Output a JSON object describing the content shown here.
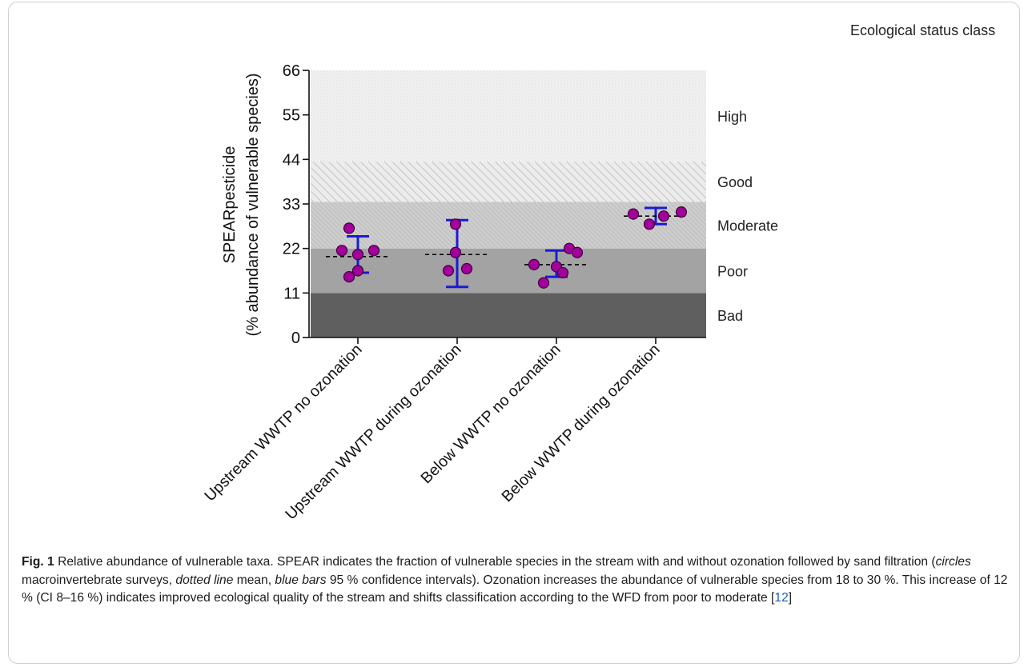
{
  "chart_data": {
    "type": "scatter",
    "title": "",
    "ylabel_line1": "SPEARpesticide",
    "ylabel_line2": "(% abundance of vulnerable species)",
    "ylim": [
      0,
      66
    ],
    "yticks": [
      0,
      11,
      22,
      33,
      44,
      55,
      66
    ],
    "categories": [
      "Upstream WWTP no ozonation",
      "Upstream WWTP during ozonation",
      "Below WWTP no ozonation",
      "Below WWTP during ozonation"
    ],
    "band_legend_title": "Ecological status class",
    "bands": [
      {
        "label": "Bad",
        "from": 0,
        "to": 11,
        "color": "#5f5f5f",
        "pattern": "solid"
      },
      {
        "label": "Poor",
        "from": 11,
        "to": 22,
        "color": "#a3a3a3",
        "pattern": "solid"
      },
      {
        "label": "Moderate",
        "from": 22,
        "to": 33.5,
        "color": "#c8c8c8",
        "pattern": "hatch-dense"
      },
      {
        "label": "Good",
        "from": 33.5,
        "to": 43.5,
        "color": "#e6e6e6",
        "pattern": "hatch"
      },
      {
        "label": "High",
        "from": 43.5,
        "to": 66,
        "color": "#f1f1f1",
        "pattern": "dots"
      }
    ],
    "groups": [
      {
        "points": [
          21.5,
          27,
          20.5,
          15,
          16.5,
          21.5
        ],
        "mean": 20,
        "ci": [
          16,
          25
        ]
      },
      {
        "points": [
          28,
          21,
          16.5,
          17
        ],
        "mean": 20.5,
        "ci": [
          12.5,
          29
        ]
      },
      {
        "points": [
          18,
          22,
          13.5,
          17.5,
          16,
          21
        ],
        "mean": 18,
        "ci": [
          15,
          21.5
        ]
      },
      {
        "points": [
          30.5,
          28,
          30,
          31
        ],
        "mean": 30,
        "ci": [
          28,
          32
        ]
      }
    ],
    "colors": {
      "point_fill": "#a3009c",
      "point_stroke": "#3a0038",
      "ci_bar": "#1a1ad6",
      "mean_line": "#000000"
    }
  },
  "caption": {
    "fig_label": "Fig. 1",
    "part1": "  Relative abundance of vulnerable taxa. SPEAR indicates the fraction of vulnerable species in the stream with and without ozonation followed by sand filtration (",
    "circles": "circles",
    "part2": " macroinvertebrate surveys, ",
    "dotted_line": "dotted line",
    "part3": " mean, ",
    "blue_bars": "blue bars",
    "part4": " 95 % confidence intervals). Ozonation increases the abundance of vulnerable species from 18 to 30 %. This increase of 12 % (CI 8–16 %) indicates improved ecological quality of the stream and shifts classification according to the WFD from poor to moderate [",
    "ref": "12",
    "part5": "]"
  }
}
